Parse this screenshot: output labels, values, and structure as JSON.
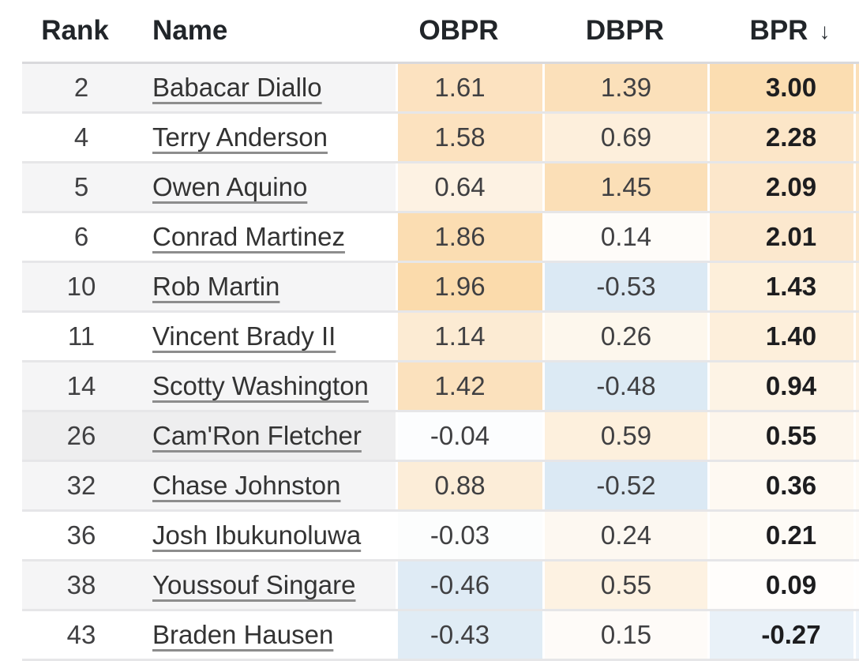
{
  "table": {
    "columns": [
      {
        "key": "rank",
        "label": "Rank"
      },
      {
        "key": "name",
        "label": "Name"
      },
      {
        "key": "obpr",
        "label": "OBPR"
      },
      {
        "key": "dbpr",
        "label": "DBPR"
      },
      {
        "key": "bpr",
        "label": "BPR"
      }
    ],
    "sort": {
      "column": "BPR",
      "direction": "desc",
      "arrow": "↓"
    },
    "colors": {
      "stripe_gray": "#f5f5f6",
      "stripe_white": "#ffffff",
      "row_hover": "#eeeeef",
      "divider": "#e6e6e8",
      "header_border": "#d9d9dc",
      "positive_scale_max": "#fbdcae",
      "negative_scale": "#dbe9f4"
    },
    "rows": [
      {
        "rank": "2",
        "name": "Babacar Diallo",
        "obpr": "1.61",
        "dbpr": "1.39",
        "bpr": "3.00",
        "hovered": false,
        "stripe_bg": "#f5f5f6",
        "obpr_bg": "#fce2c0",
        "dbpr_bg": "#fbe0ba",
        "bpr_bg": "#fbddb1",
        "next_bg": "#fbdfb8"
      },
      {
        "rank": "4",
        "name": "Terry Anderson",
        "obpr": "1.58",
        "dbpr": "0.69",
        "bpr": "2.28",
        "hovered": false,
        "stripe_bg": "#ffffff",
        "obpr_bg": "#fce2bf",
        "dbpr_bg": "#fdefdc",
        "bpr_bg": "#fce6c8",
        "next_bg": "#fcead0"
      },
      {
        "rank": "5",
        "name": "Owen Aquino",
        "obpr": "0.64",
        "dbpr": "1.45",
        "bpr": "2.09",
        "hovered": false,
        "stripe_bg": "#f5f5f6",
        "obpr_bg": "#fdf2e3",
        "dbpr_bg": "#fbdfb7",
        "bpr_bg": "#fce7cb",
        "next_bg": "#fce9ce"
      },
      {
        "rank": "6",
        "name": "Conrad Martinez",
        "obpr": "1.86",
        "dbpr": "0.14",
        "bpr": "2.01",
        "hovered": false,
        "stripe_bg": "#ffffff",
        "obpr_bg": "#fbddb2",
        "dbpr_bg": "#fefcf9",
        "bpr_bg": "#fce8ce",
        "next_bg": "#fce8cc"
      },
      {
        "rank": "10",
        "name": "Rob Martin",
        "obpr": "1.96",
        "dbpr": "-0.53",
        "bpr": "1.43",
        "hovered": false,
        "stripe_bg": "#f5f5f6",
        "obpr_bg": "#fbdbac",
        "dbpr_bg": "#dbe9f4",
        "bpr_bg": "#fdefda",
        "next_bg": "#fdefdb"
      },
      {
        "rank": "11",
        "name": "Vincent Brady II",
        "obpr": "1.14",
        "dbpr": "0.26",
        "bpr": "1.40",
        "hovered": false,
        "stripe_bg": "#ffffff",
        "obpr_bg": "#fcebd3",
        "dbpr_bg": "#fdf7ed",
        "bpr_bg": "#fdefdb",
        "next_bg": "#fdeeda"
      },
      {
        "rank": "14",
        "name": "Scotty Washington",
        "obpr": "1.42",
        "dbpr": "-0.48",
        "bpr": "0.94",
        "hovered": false,
        "stripe_bg": "#f5f5f6",
        "obpr_bg": "#fbe1bd",
        "dbpr_bg": "#dceaf4",
        "bpr_bg": "#fdf3e5",
        "next_bg": "#fdf4e9"
      },
      {
        "rank": "26",
        "name": "Cam'Ron Fletcher",
        "obpr": "-0.04",
        "dbpr": "0.59",
        "bpr": "0.55",
        "hovered": true,
        "stripe_bg": "#eeeeef",
        "obpr_bg": "#fcfdfe",
        "dbpr_bg": "#fdf0dd",
        "bpr_bg": "#fdf6ec",
        "next_bg": "#fef8f0"
      },
      {
        "rank": "32",
        "name": "Chase Johnston",
        "obpr": "0.88",
        "dbpr": "-0.52",
        "bpr": "0.36",
        "hovered": false,
        "stripe_bg": "#f5f5f6",
        "obpr_bg": "#fcedd8",
        "dbpr_bg": "#dbe9f4",
        "bpr_bg": "#fef9f2",
        "next_bg": "#fefbf6"
      },
      {
        "rank": "36",
        "name": "Josh Ibukunoluwa",
        "obpr": "-0.03",
        "dbpr": "0.24",
        "bpr": "0.21",
        "hovered": false,
        "stripe_bg": "#ffffff",
        "obpr_bg": "#fcfdfd",
        "dbpr_bg": "#fdf8f1",
        "bpr_bg": "#fefbf6",
        "next_bg": "#fefcf9"
      },
      {
        "rank": "38",
        "name": "Youssouf Singare",
        "obpr": "-0.46",
        "dbpr": "0.55",
        "bpr": "0.09",
        "hovered": false,
        "stripe_bg": "#f5f5f6",
        "obpr_bg": "#dfebf5",
        "dbpr_bg": "#fdf2e2",
        "bpr_bg": "#fffdfb",
        "next_bg": "#fffefd"
      },
      {
        "rank": "43",
        "name": "Braden Hausen",
        "obpr": "-0.43",
        "dbpr": "0.15",
        "bpr": "-0.27",
        "hovered": false,
        "stripe_bg": "#ffffff",
        "obpr_bg": "#e0ecf5",
        "dbpr_bg": "#fefbf8",
        "bpr_bg": "#e9f1f8",
        "next_bg": "#eef4fa"
      }
    ]
  }
}
